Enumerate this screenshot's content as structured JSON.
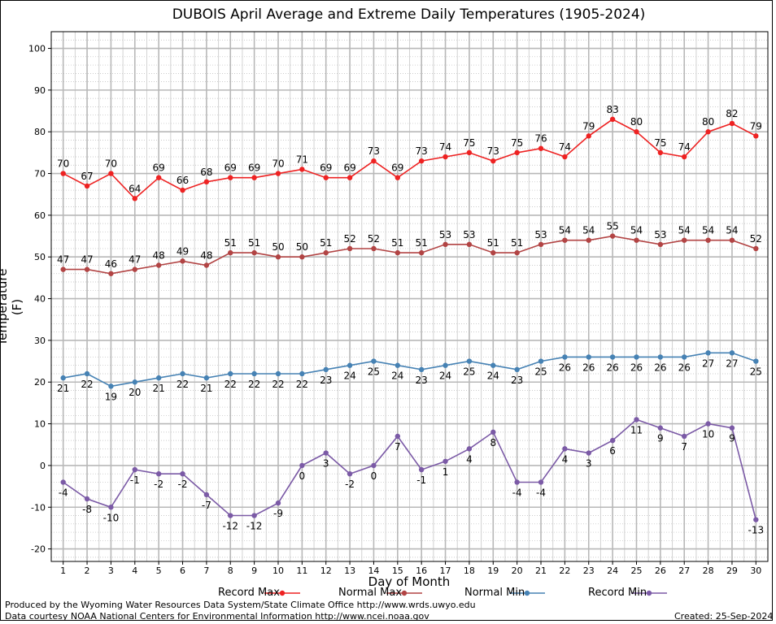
{
  "chart_data": {
    "type": "line",
    "title": "DUBOIS April Average and Extreme Daily Temperatures (1905-2024)",
    "xlabel": "Day of Month",
    "ylabel": "Temperature (F)",
    "x": [
      1,
      2,
      3,
      4,
      5,
      6,
      7,
      8,
      9,
      10,
      11,
      12,
      13,
      14,
      15,
      16,
      17,
      18,
      19,
      20,
      21,
      22,
      23,
      24,
      25,
      26,
      27,
      28,
      29,
      30
    ],
    "xlim": [
      0.5,
      30.5
    ],
    "ylim": [
      -23,
      104
    ],
    "yticks": [
      -20,
      -10,
      0,
      10,
      20,
      30,
      40,
      50,
      60,
      70,
      80,
      90,
      100
    ],
    "grid": true,
    "legend_position": "bottom",
    "series": [
      {
        "name": "Record Max",
        "color": "#ee2222",
        "label_pos": "above",
        "values": [
          70,
          67,
          70,
          64,
          69,
          66,
          68,
          69,
          69,
          70,
          71,
          69,
          69,
          73,
          69,
          73,
          74,
          75,
          73,
          75,
          76,
          74,
          79,
          83,
          80,
          75,
          74,
          80,
          82,
          79
        ]
      },
      {
        "name": "Normal Max",
        "color": "#b24444",
        "label_pos": "above",
        "values": [
          47,
          47,
          46,
          47,
          48,
          49,
          48,
          51,
          51,
          50,
          50,
          51,
          52,
          52,
          51,
          51,
          53,
          53,
          51,
          51,
          53,
          54,
          54,
          55,
          54,
          53,
          54,
          54,
          54,
          52
        ]
      },
      {
        "name": "Normal Min",
        "color": "#4682b4",
        "label_pos": "below",
        "values": [
          21,
          22,
          19,
          20,
          21,
          22,
          21,
          22,
          22,
          22,
          22,
          23,
          24,
          25,
          24,
          23,
          24,
          25,
          24,
          23,
          25,
          26,
          26,
          26,
          26,
          26,
          26,
          27,
          27,
          25
        ]
      },
      {
        "name": "Record Min",
        "color": "#7b5aa6",
        "label_pos": "below",
        "values": [
          -4,
          -8,
          -10,
          -1,
          -2,
          -2,
          -7,
          -12,
          -12,
          -9,
          0,
          3,
          -2,
          0,
          7,
          -1,
          1,
          4,
          8,
          -4,
          -4,
          4,
          3,
          6,
          11,
          9,
          7,
          10,
          9,
          -13
        ]
      }
    ]
  },
  "footer": {
    "credit_line1": "Produced by the Wyoming Water Resources Data System/State Climate Office http://www.wrds.uwyo.edu",
    "credit_line2": "Data courtesy NOAA National Centers for Environmental Information http://www.ncei.noaa.gov",
    "created": "Created: 25-Sep-2024"
  }
}
